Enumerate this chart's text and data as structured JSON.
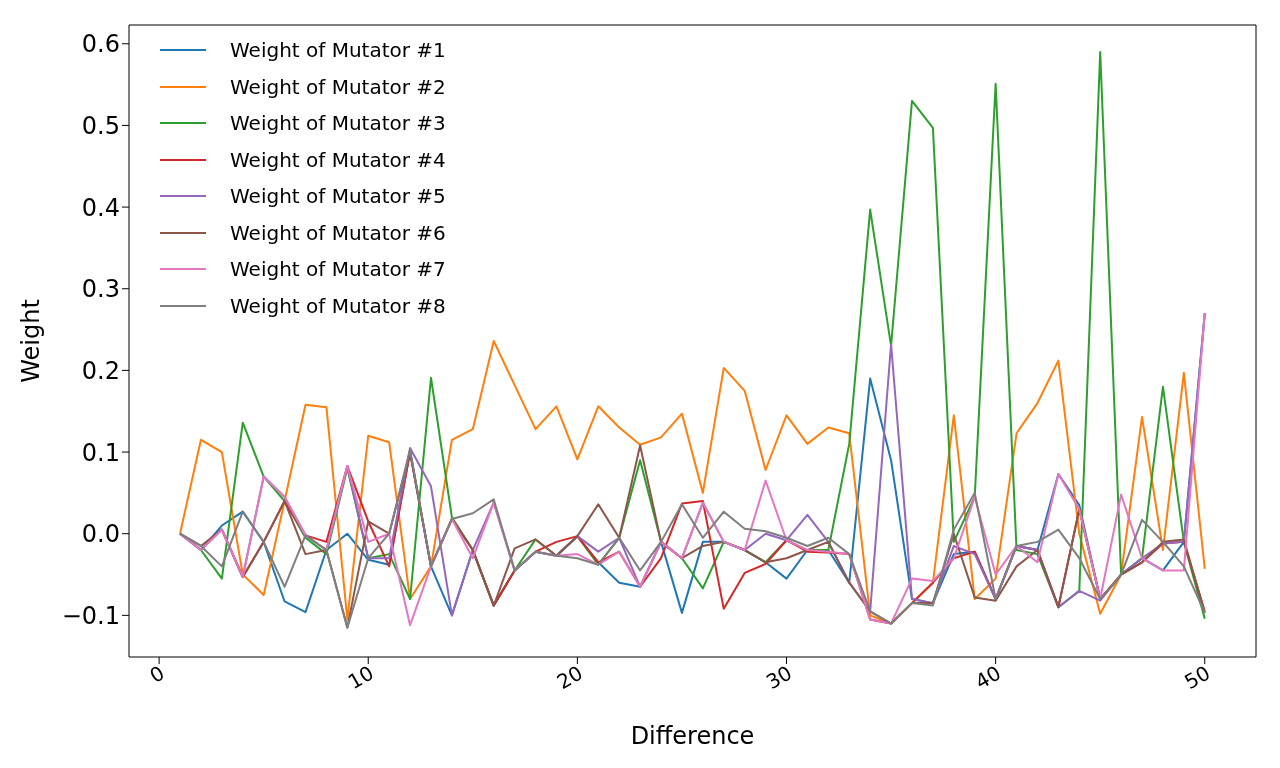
{
  "chart_data": {
    "type": "line",
    "xlabel": "Difference",
    "ylabel": "Weight",
    "x": [
      1,
      2,
      3,
      4,
      5,
      6,
      7,
      8,
      9,
      10,
      11,
      12,
      13,
      14,
      15,
      16,
      17,
      18,
      19,
      20,
      21,
      22,
      23,
      24,
      25,
      26,
      27,
      28,
      29,
      30,
      31,
      32,
      33,
      34,
      35,
      36,
      37,
      38,
      39,
      40,
      41,
      42,
      43,
      44,
      45,
      46,
      47,
      48,
      49,
      50
    ],
    "xlim": [
      -1.44,
      52.45
    ],
    "xticks": [
      0,
      10,
      20,
      30,
      40,
      50
    ],
    "ylim": [
      -0.151,
      0.623
    ],
    "yticks": [
      {
        "value": -0.1,
        "label": "−0.1"
      },
      {
        "value": 0,
        "label": "0.0"
      },
      0.1,
      0.2,
      0.3,
      0.4,
      0.5,
      0.6
    ],
    "legend": "top left",
    "marker": "none",
    "line_style": "solid",
    "series": [
      {
        "name": "Weight of Mutator #1",
        "color": "#1f77b4",
        "values": [
          0,
          -0.02,
          0.01,
          0.027,
          -0.01,
          -0.083,
          -0.096,
          -0.02,
          0,
          -0.032,
          -0.038,
          0.1,
          -0.04,
          -0.1,
          -0.02,
          -0.088,
          -0.045,
          -0.022,
          -0.027,
          -0.003,
          -0.035,
          -0.06,
          -0.065,
          -0.01,
          -0.097,
          -0.01,
          -0.01,
          -0.02,
          -0.035,
          -0.055,
          -0.02,
          -0.02,
          -0.06,
          0.19,
          0.09,
          -0.08,
          -0.085,
          -0.025,
          -0.022,
          -0.08,
          -0.015,
          -0.02,
          0.073,
          0.035,
          -0.08,
          -0.05,
          -0.03,
          -0.045,
          -0.01,
          0.27
        ]
      },
      {
        "name": "Weight of Mutator #2",
        "color": "#ff7f0e",
        "values": [
          0,
          0.115,
          0.1,
          -0.05,
          -0.075,
          0.04,
          0.158,
          0.155,
          -0.105,
          0.12,
          0.112,
          -0.08,
          -0.04,
          0.115,
          0.128,
          0.236,
          0.182,
          0.128,
          0.156,
          0.091,
          0.156,
          0.13,
          0.109,
          0.118,
          0.147,
          0.05,
          0.203,
          0.175,
          0.078,
          0.145,
          0.11,
          0.13,
          0.123,
          -0.1,
          -0.11,
          -0.085,
          -0.06,
          0.145,
          -0.08,
          -0.055,
          0.123,
          0.16,
          0.212,
          0,
          -0.098,
          -0.05,
          0.143,
          -0.02,
          0.197,
          -0.043
        ]
      },
      {
        "name": "Weight of Mutator #3",
        "color": "#2ca02c",
        "values": [
          0,
          -0.02,
          -0.055,
          0.136,
          0.07,
          0.04,
          -0.005,
          -0.025,
          0.08,
          -0.03,
          -0.025,
          -0.08,
          0.191,
          0.02,
          -0.02,
          -0.088,
          -0.045,
          -0.007,
          -0.027,
          -0.003,
          -0.038,
          -0.005,
          0.09,
          -0.01,
          -0.03,
          -0.067,
          -0.01,
          -0.02,
          -0.035,
          -0.008,
          -0.02,
          -0.02,
          0.11,
          0.397,
          0.23,
          0.53,
          0.497,
          -0.01,
          0.045,
          0.551,
          -0.02,
          -0.025,
          -0.09,
          -0.07,
          0.59,
          -0.05,
          -0.03,
          0.18,
          -0.01,
          -0.104
        ]
      },
      {
        "name": "Weight of Mutator #4",
        "color": "#d62728",
        "values": [
          null,
          null,
          0.005,
          -0.053,
          -0.01,
          0.04,
          -0.002,
          -0.01,
          0.083,
          0.015,
          -0.04,
          0.1,
          -0.04,
          0.018,
          -0.02,
          -0.088,
          -0.045,
          -0.022,
          -0.01,
          -0.003,
          -0.035,
          -0.022,
          -0.065,
          -0.03,
          0.037,
          0.04,
          -0.092,
          -0.048,
          -0.037,
          -0.008,
          -0.022,
          -0.023,
          -0.025,
          -0.105,
          -0.11,
          -0.085,
          -0.06,
          -0.03,
          -0.022,
          -0.08,
          -0.015,
          -0.02,
          -0.09,
          0.03,
          -0.08,
          -0.05,
          -0.035,
          -0.012,
          -0.01,
          -0.095
        ]
      },
      {
        "name": "Weight of Mutator #5",
        "color": "#9467bd",
        "values": [
          0,
          -0.02,
          0.005,
          -0.053,
          0.07,
          0.045,
          -0.002,
          -0.02,
          0.083,
          -0.03,
          -0.03,
          0.105,
          0.058,
          -0.1,
          -0.02,
          0.038,
          -0.045,
          -0.022,
          -0.027,
          -0.003,
          -0.022,
          -0.005,
          -0.065,
          -0.01,
          -0.03,
          0.038,
          -0.01,
          -0.02,
          0,
          -0.008,
          0.023,
          -0.01,
          -0.06,
          -0.095,
          0.232,
          -0.08,
          -0.085,
          -0.015,
          -0.025,
          -0.08,
          -0.015,
          -0.02,
          -0.09,
          -0.07,
          -0.082,
          -0.05,
          -0.03,
          -0.012,
          -0.01,
          0.27
        ]
      },
      {
        "name": "Weight of Mutator #6",
        "color": "#8c564b",
        "values": [
          0,
          -0.015,
          0.005,
          -0.053,
          -0.01,
          0.04,
          -0.025,
          -0.02,
          -0.115,
          0.015,
          0,
          0.1,
          -0.04,
          0.018,
          -0.02,
          -0.088,
          -0.018,
          -0.007,
          -0.027,
          -0.003,
          0.036,
          -0.005,
          0.108,
          -0.01,
          -0.03,
          -0.015,
          -0.01,
          -0.02,
          -0.035,
          -0.03,
          -0.02,
          -0.01,
          -0.06,
          -0.095,
          -0.11,
          -0.085,
          -0.085,
          0,
          -0.078,
          -0.082,
          -0.04,
          -0.02,
          -0.09,
          0.03,
          -0.08,
          -0.05,
          -0.035,
          -0.01,
          -0.007,
          -0.097
        ]
      },
      {
        "name": "Weight of Mutator #7",
        "color": "#e377c2",
        "values": [
          0,
          -0.02,
          0.005,
          -0.053,
          0.07,
          0.045,
          -0.002,
          -0.02,
          0.083,
          -0.01,
          0,
          -0.112,
          -0.04,
          0.018,
          -0.03,
          0.038,
          -0.045,
          -0.022,
          -0.027,
          -0.025,
          -0.038,
          -0.022,
          -0.065,
          -0.01,
          -0.03,
          0.038,
          -0.01,
          -0.02,
          0.065,
          -0.008,
          -0.02,
          -0.022,
          -0.025,
          -0.105,
          -0.11,
          -0.055,
          -0.058,
          -0.03,
          0.045,
          -0.05,
          -0.015,
          -0.035,
          0.073,
          0.03,
          -0.08,
          0.048,
          -0.03,
          -0.045,
          -0.045,
          0.27
        ]
      },
      {
        "name": "Weight of Mutator #8",
        "color": "#7f7f7f",
        "values": [
          0,
          -0.015,
          -0.04,
          0.027,
          -0.01,
          -0.065,
          -0.002,
          -0.02,
          -0.115,
          -0.03,
          0,
          0.103,
          -0.04,
          0.018,
          0.025,
          0.042,
          -0.045,
          -0.022,
          -0.027,
          -0.03,
          -0.038,
          -0.005,
          -0.045,
          -0.01,
          0.036,
          -0.005,
          0.027,
          0.006,
          0.003,
          -0.005,
          -0.015,
          -0.005,
          -0.025,
          -0.095,
          -0.11,
          -0.085,
          -0.088,
          0.005,
          0.05,
          -0.08,
          -0.015,
          -0.01,
          0.005,
          -0.03,
          -0.08,
          -0.05,
          0.017,
          -0.01,
          -0.04,
          -0.097
        ]
      }
    ]
  }
}
